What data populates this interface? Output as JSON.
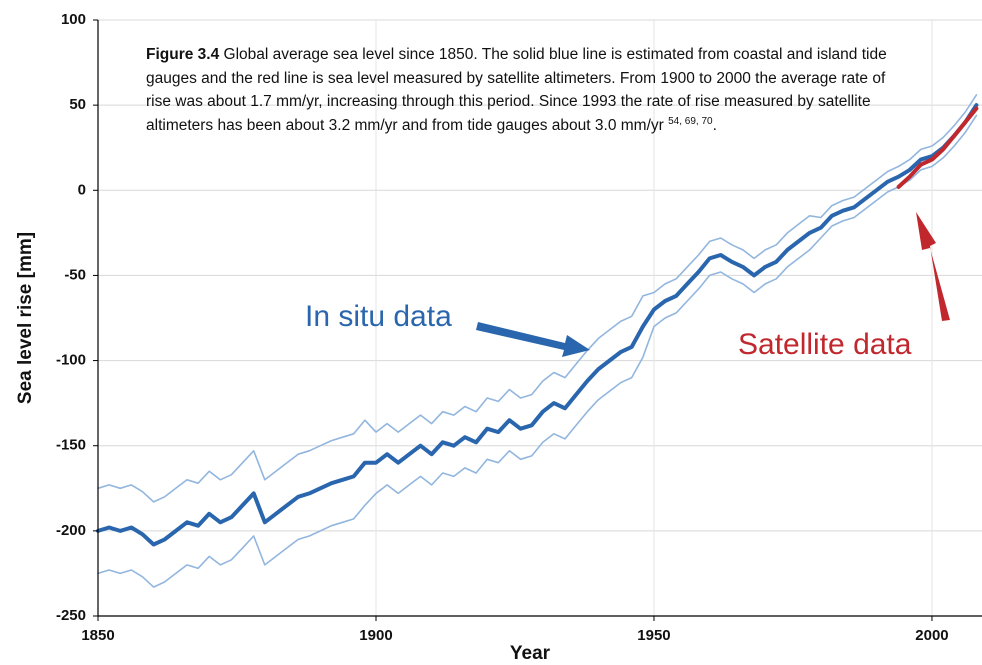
{
  "chart_data": {
    "type": "line",
    "caption": {
      "label": "Figure 3.4",
      "text": "Global average sea level since 1850. The solid blue line is estimated from coastal and island tide gauges and the red line is sea level measured by satellite altimeters. From 1900 to 2000 the average rate of rise was about 1.7 mm/yr, increasing through this period. Since 1993 the rate of rise measured by satellite altimeters has been about 3.2 mm/yr and from tide gauges about 3.0 mm/yr",
      "refs": "54, 69, 70",
      "end": "."
    },
    "xlabel": "Year",
    "ylabel": "Sea level rise [mm]",
    "xlim": [
      1850,
      2009
    ],
    "xticks": [
      1850,
      1900,
      1950,
      2000
    ],
    "ylim": [
      -250,
      100
    ],
    "yticks": [
      -250,
      -200,
      -150,
      -100,
      -50,
      0,
      50,
      100
    ],
    "grid": true,
    "x": [
      1850,
      1852,
      1854,
      1856,
      1858,
      1860,
      1862,
      1864,
      1866,
      1868,
      1870,
      1872,
      1874,
      1876,
      1878,
      1880,
      1882,
      1884,
      1886,
      1888,
      1890,
      1892,
      1894,
      1896,
      1898,
      1900,
      1902,
      1904,
      1906,
      1908,
      1910,
      1912,
      1914,
      1916,
      1918,
      1920,
      1922,
      1924,
      1926,
      1928,
      1930,
      1932,
      1934,
      1936,
      1938,
      1940,
      1942,
      1944,
      1946,
      1948,
      1950,
      1952,
      1954,
      1956,
      1958,
      1960,
      1962,
      1964,
      1966,
      1968,
      1970,
      1972,
      1974,
      1976,
      1978,
      1980,
      1982,
      1984,
      1986,
      1988,
      1990,
      1992,
      1994,
      1996,
      1998,
      2000,
      2002,
      2004,
      2006,
      2008
    ],
    "series": [
      {
        "name": "In situ data",
        "color": "#2a66ad",
        "width": 4,
        "values": [
          -200,
          -198,
          -200,
          -198,
          -202,
          -208,
          -205,
          -200,
          -195,
          -197,
          -190,
          -195,
          -192,
          -185,
          -178,
          -195,
          -190,
          -185,
          -180,
          -178,
          -175,
          -172,
          -170,
          -168,
          -160,
          -160,
          -155,
          -160,
          -155,
          -150,
          -155,
          -148,
          -150,
          -145,
          -148,
          -140,
          -142,
          -135,
          -140,
          -138,
          -130,
          -125,
          -128,
          -120,
          -112,
          -105,
          -100,
          -95,
          -92,
          -80,
          -70,
          -65,
          -62,
          -55,
          -48,
          -40,
          -38,
          -42,
          -45,
          -50,
          -45,
          -42,
          -35,
          -30,
          -25,
          -22,
          -15,
          -12,
          -10,
          -5,
          0,
          5,
          8,
          12,
          18,
          20,
          25,
          32,
          40,
          50
        ]
      },
      {
        "color": "#92b6de",
        "width": 1.6,
        "values": [
          -175,
          -173,
          -175,
          -173,
          -177,
          -183,
          -180,
          -175,
          -170,
          -172,
          -165,
          -170,
          -167,
          -160,
          -153,
          -170,
          -165,
          -160,
          -155,
          -153,
          -150,
          -147,
          -145,
          -143,
          -135,
          -142,
          -137,
          -142,
          -137,
          -132,
          -137,
          -130,
          -132,
          -127,
          -130,
          -122,
          -124,
          -117,
          -122,
          -120,
          -112,
          -107,
          -110,
          -102,
          -94,
          -87,
          -82,
          -77,
          -74,
          -62,
          -60,
          -55,
          -52,
          -45,
          -38,
          -30,
          -28,
          -32,
          -35,
          -40,
          -35,
          -32,
          -25,
          -20,
          -15,
          -16,
          -9,
          -6,
          -4,
          1,
          6,
          11,
          14,
          18,
          24,
          26,
          31,
          38,
          46,
          56
        ]
      },
      {
        "color": "#92b6de",
        "width": 1.6,
        "values": [
          -225,
          -223,
          -225,
          -223,
          -227,
          -233,
          -230,
          -225,
          -220,
          -222,
          -215,
          -220,
          -217,
          -210,
          -203,
          -220,
          -215,
          -210,
          -205,
          -203,
          -200,
          -197,
          -195,
          -193,
          -185,
          -178,
          -173,
          -178,
          -173,
          -168,
          -173,
          -166,
          -168,
          -163,
          -166,
          -158,
          -160,
          -153,
          -158,
          -156,
          -148,
          -143,
          -146,
          -138,
          -130,
          -123,
          -118,
          -113,
          -110,
          -98,
          -80,
          -75,
          -72,
          -65,
          -58,
          -50,
          -48,
          -52,
          -55,
          -60,
          -55,
          -52,
          -45,
          -40,
          -35,
          -28,
          -21,
          -18,
          -16,
          -11,
          -6,
          -1,
          2,
          6,
          12,
          14,
          19,
          26,
          34,
          44
        ]
      },
      {
        "name": "Satellite data",
        "color": "#c0282d",
        "width": 4,
        "values": [
          null,
          null,
          null,
          null,
          null,
          null,
          null,
          null,
          null,
          null,
          null,
          null,
          null,
          null,
          null,
          null,
          null,
          null,
          null,
          null,
          null,
          null,
          null,
          null,
          null,
          null,
          null,
          null,
          null,
          null,
          null,
          null,
          null,
          null,
          null,
          null,
          null,
          null,
          null,
          null,
          null,
          null,
          null,
          null,
          null,
          null,
          null,
          null,
          null,
          null,
          null,
          null,
          null,
          null,
          null,
          null,
          null,
          null,
          null,
          null,
          null,
          null,
          null,
          null,
          null,
          null,
          null,
          null,
          null,
          null,
          null,
          null,
          2,
          8,
          15,
          18,
          24,
          32,
          40,
          48
        ]
      }
    ]
  }
}
